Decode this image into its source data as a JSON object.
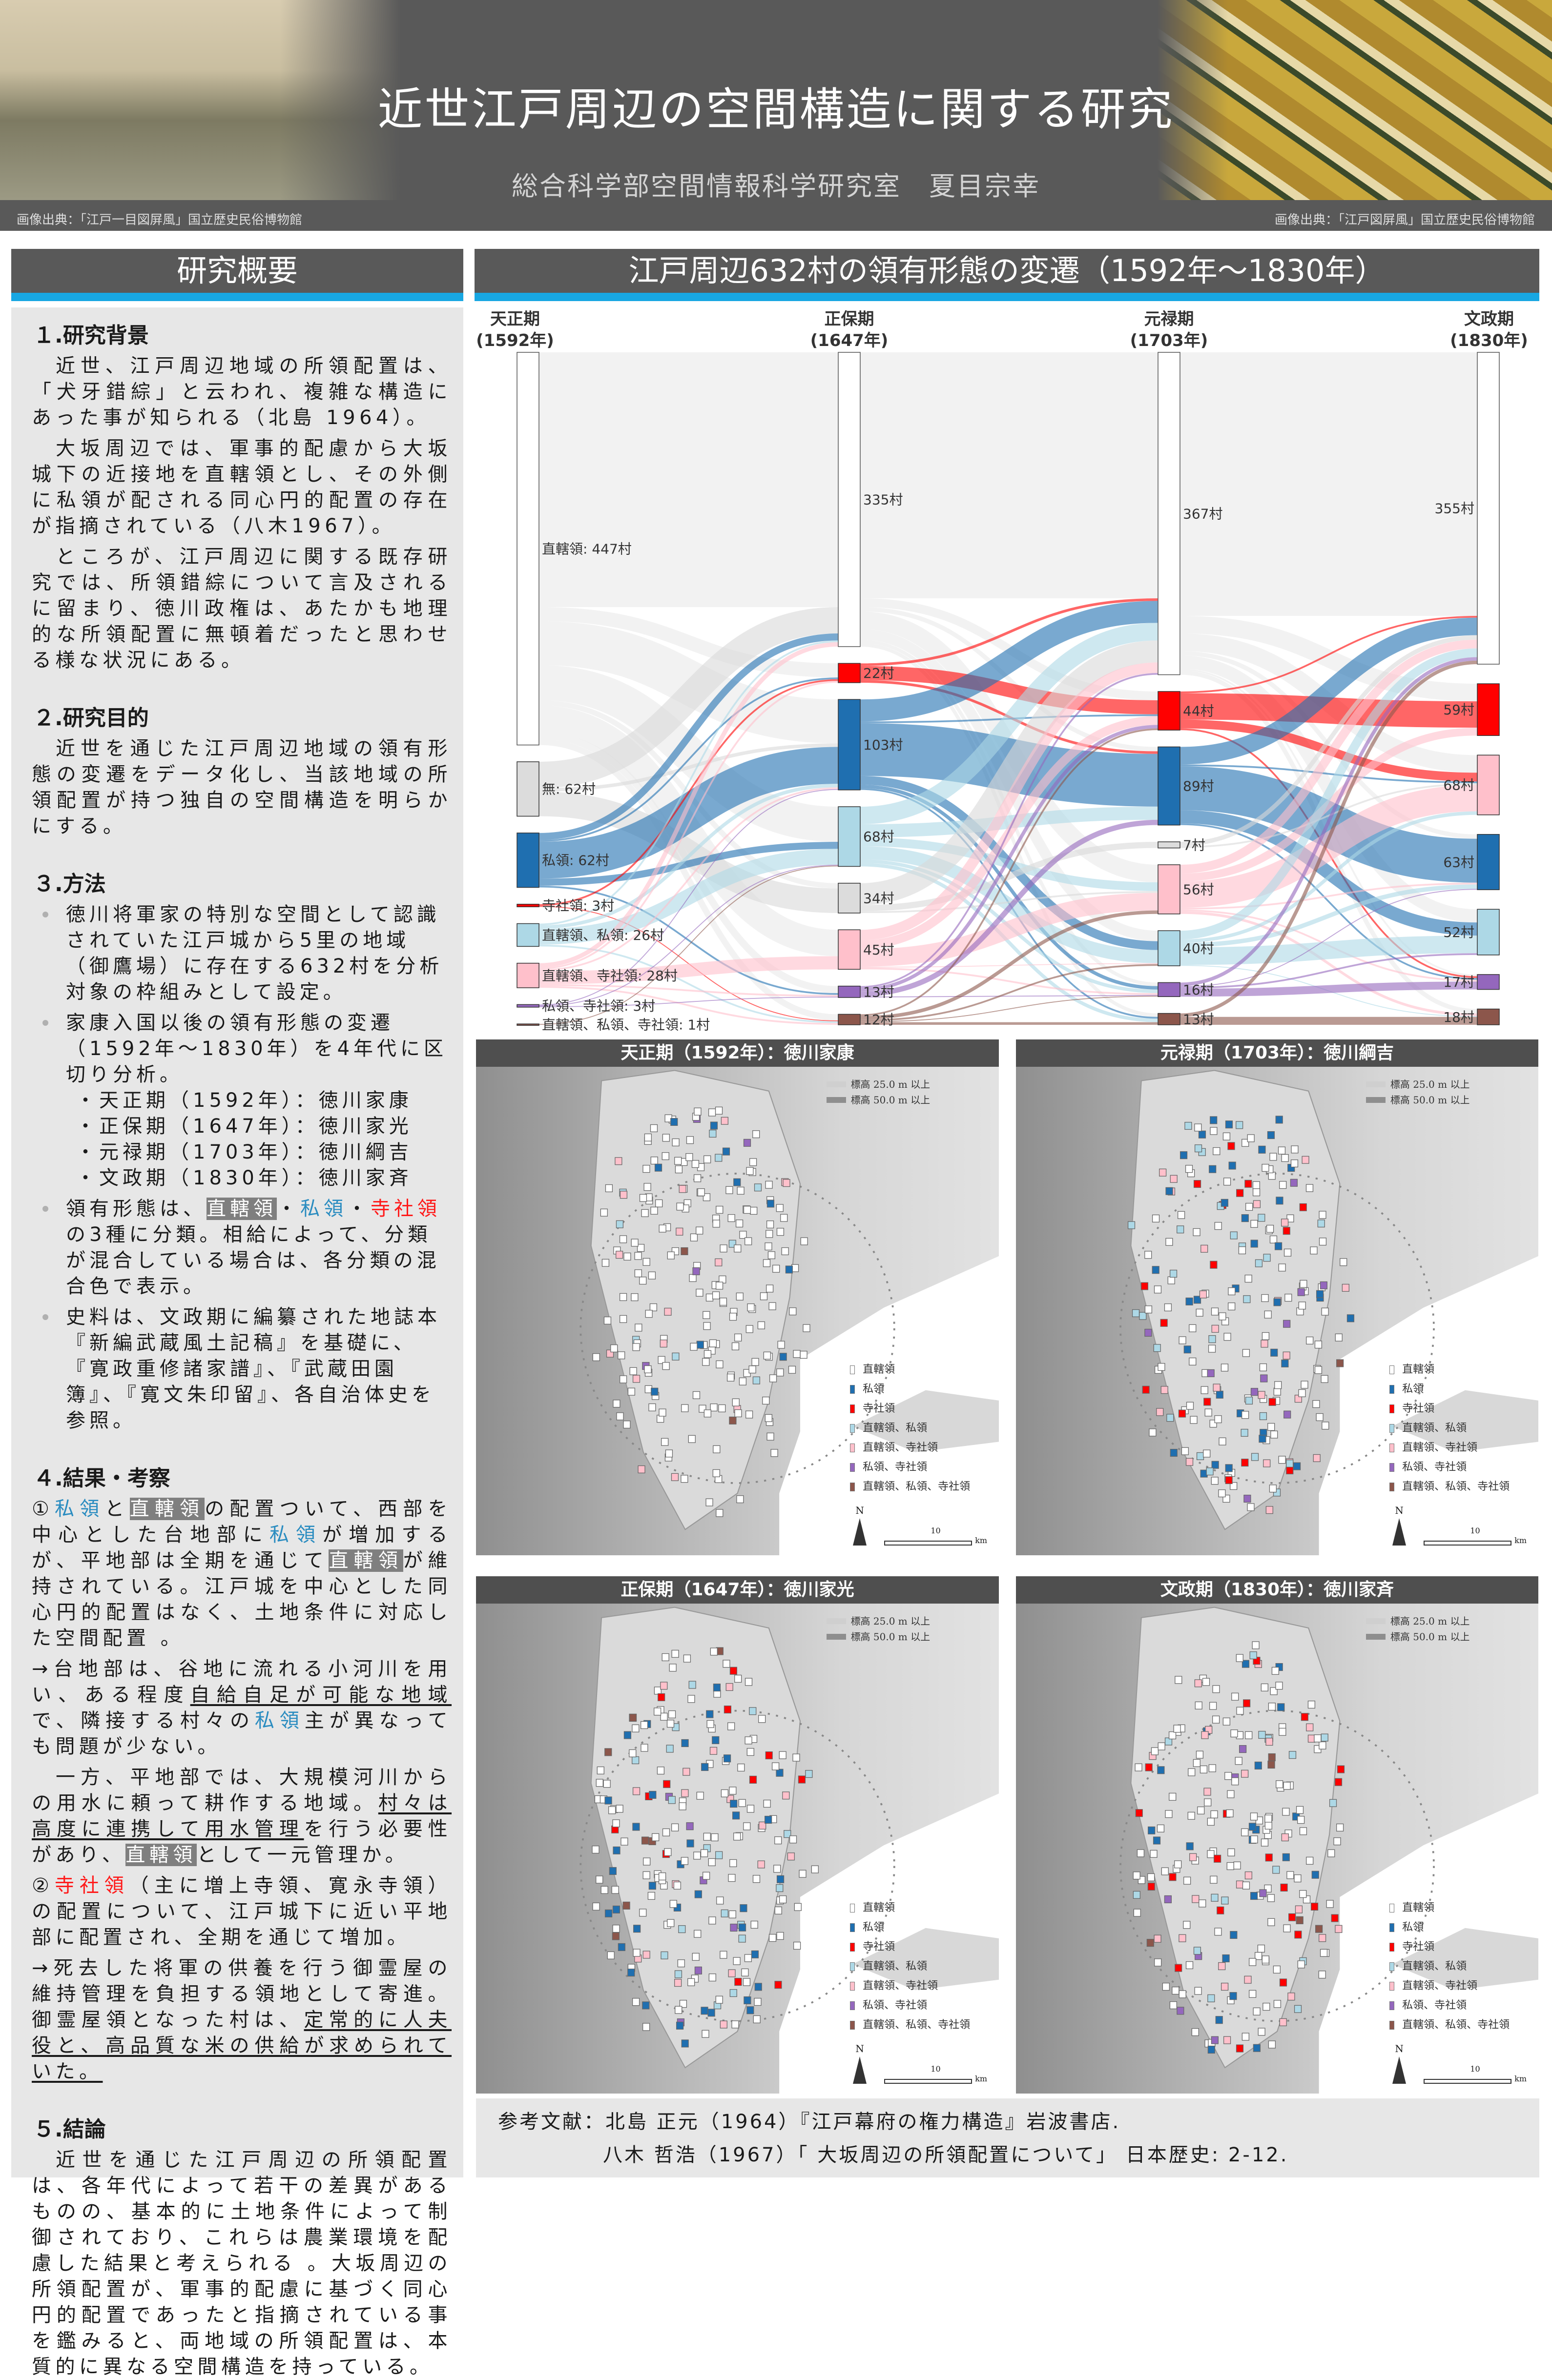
{
  "header": {
    "title": "近世江戸周辺の空間構造に関する研究",
    "subtitle": "総合科学部空間情報科学研究室　夏目宗幸",
    "credit_left": "画像出典：「江戸一目図屏風」国立歴史民俗博物館",
    "credit_right": "画像出典：「江戸図屏風」国立歴史民俗博物館"
  },
  "left_panel": {
    "heading": "研究概要",
    "s1": {
      "title": "１.研究背景",
      "paras": [
        "近世、江戸周辺地域の所領配置は、「犬牙錯綜」と云われ、複雑な構造にあった事が知られる（北島 1964）。",
        "大坂周辺では、軍事的配慮から大坂城下の近接地を直轄領とし、その外側に私領が配される同心円的配置の存在が指摘されている（八木1967）。",
        "ところが、江戸周辺に関する既存研究では、所領錯綜について言及されるに留まり、徳川政権は、あたかも地理的な所領配置に無頓着だったと思わせる様な状況にある。"
      ]
    },
    "s2": {
      "title": "２.研究目的",
      "paras": [
        "近世を通じた江戸周辺地域の領有形態の変遷をデータ化し、当該地域の所領配置が持つ独自の空間構造を明らかにする。"
      ]
    },
    "s3": {
      "title": "３.方法",
      "b1": "徳川将軍家の特別な空間として認識されていた江戸城から5里の地域（御鷹場）に存在する632村を分析対象の枠組みとして設定。",
      "b2": "家康入国以後の領有形態の変遷（1592年～1830年）を4年代に区切り分析。",
      "periods": [
        "・天正期（1592年）：徳川家康",
        "・正保期（1647年）：徳川家光",
        "・元禄期（1703年）：徳川綱吉",
        "・文政期（1830年）：徳川家斉"
      ],
      "b3": [
        {
          "t": "領有形態は、",
          "s": ""
        },
        {
          "t": "直轄領",
          "s": "hl"
        },
        {
          "t": "・",
          "s": ""
        },
        {
          "t": "私領",
          "s": "pv"
        },
        {
          "t": "・",
          "s": ""
        },
        {
          "t": "寺社領",
          "s": "ts"
        },
        {
          "t": "の3種に分類。相給によって、分類が混合している場合は、各分類の混合色で表示。",
          "s": ""
        }
      ],
      "b4": "史料は、文政期に編纂された地誌本『新編武蔵風土記稿』を基礎に、『寛政重修諸家譜』、『武蔵田園簿』、『寛文朱印留』、各自治体史を参照。"
    },
    "s4": {
      "title": "４.結果・考察",
      "p1": [
        {
          "t": "①",
          "s": ""
        },
        {
          "t": "私領",
          "s": "pv"
        },
        {
          "t": "と",
          "s": ""
        },
        {
          "t": "直轄領",
          "s": "hl"
        },
        {
          "t": "の配置ついて、西部を中心とした台地部に",
          "s": ""
        },
        {
          "t": "私領",
          "s": "pv"
        },
        {
          "t": "が増加するが、平地部は全期を通じて",
          "s": ""
        },
        {
          "t": "直轄領",
          "s": "hl"
        },
        {
          "t": "が維持されている。江戸城を中心とした同心円的配置はなく、土地条件に対応した空間配置 。",
          "s": ""
        }
      ],
      "p2": [
        {
          "t": "→台地部は、谷地に流れる小河川を用い、ある程度",
          "s": ""
        },
        {
          "t": "自給自足が可能な地域",
          "s": "u"
        },
        {
          "t": "で、隣接する村々の",
          "s": ""
        },
        {
          "t": "私領",
          "s": "pv"
        },
        {
          "t": "主が異なっても問題が少ない。",
          "s": ""
        }
      ],
      "p3": [
        {
          "t": "一方、平地部では、大規模河川からの用水に頼って耕作する地域。",
          "s": ""
        },
        {
          "t": "村々は高度に連携して用水管理",
          "s": "u"
        },
        {
          "t": "を行う必要性があり、",
          "s": ""
        },
        {
          "t": "直轄領",
          "s": "hl"
        },
        {
          "t": "として一元管理か。",
          "s": ""
        }
      ],
      "p4": [
        {
          "t": "②",
          "s": ""
        },
        {
          "t": "寺社領",
          "s": "ts"
        },
        {
          "t": "（主に増上寺領、寛永寺領）の配置について、江戸城下に近い平地部に配置され、全期を通じて増加。",
          "s": ""
        }
      ],
      "p5": [
        {
          "t": "→死去した将軍の供養を行う御霊屋の維持管理を負担する領地として寄進。御霊屋領となった村は、",
          "s": ""
        },
        {
          "t": "定常的に人夫役と、高品質な米の供給が求められていた。",
          "s": "u"
        }
      ]
    },
    "s5": {
      "title": "５.結論",
      "paras": [
        "近世を通じた江戸周辺の所領配置は、各年代によって若干の差異があるものの、基本的に土地条件によって制御されており、これらは農業環境を配慮した結果と考えられる 。大坂周辺の所領配置が、軍事的配慮に基づく同心円的配置であったと指摘されている事を鑑みると、両地域の所領配置は、本質的に異なる空間構造を持っている。"
      ]
    }
  },
  "right_panel": {
    "heading": "江戸周辺632村の領有形態の変遷（1592年～1830年）"
  },
  "colors": {
    "直轄領": "#ffffff",
    "無": "#dcdcdc",
    "私領": "#1f6fb0",
    "寺社領": "#ff0000",
    "直轄領、私領": "#add8e6",
    "直轄領、寺社領": "#ffc0cb",
    "私領、寺社領": "#9467bd",
    "直轄領、私領、寺社領": "#8c564b",
    "header_bg": "#595959",
    "accent": "#18a7e2"
  },
  "chart_data": {
    "type": "sankey",
    "unit": "村",
    "columns": [
      {
        "name": "天正期",
        "year": "(1592年)",
        "nodes": [
          {
            "cat": "直轄領",
            "value": 447,
            "label": "直轄領: 447村"
          },
          {
            "cat": "無",
            "value": 62,
            "label": "無: 62村"
          },
          {
            "cat": "私領",
            "value": 62,
            "label": "私領: 62村"
          },
          {
            "cat": "寺社領",
            "value": 3,
            "label": "寺社領: 3村"
          },
          {
            "cat": "直轄領、私領",
            "value": 26,
            "label": "直轄領、私領: 26村"
          },
          {
            "cat": "直轄領、寺社領",
            "value": 28,
            "label": "直轄領、寺社領: 28村"
          },
          {
            "cat": "私領、寺社領",
            "value": 3,
            "label": "私領、寺社領: 3村"
          },
          {
            "cat": "直轄領、私領、寺社領",
            "value": 1,
            "label": "直轄領、私領、寺社領: 1村"
          }
        ]
      },
      {
        "name": "正保期",
        "year": "(1647年)",
        "nodes": [
          {
            "cat": "直轄領",
            "value": 335,
            "label": "335村"
          },
          {
            "cat": "寺社領",
            "value": 22,
            "label": "22村"
          },
          {
            "cat": "私領",
            "value": 103,
            "label": "103村"
          },
          {
            "cat": "直轄領、私領",
            "value": 68,
            "label": "68村"
          },
          {
            "cat": "無",
            "value": 34,
            "label": "34村"
          },
          {
            "cat": "直轄領、寺社領",
            "value": 45,
            "label": "45村"
          },
          {
            "cat": "私領、寺社領",
            "value": 13,
            "label": "13村"
          },
          {
            "cat": "直轄領、私領、寺社領",
            "value": 12,
            "label": "12村"
          }
        ]
      },
      {
        "name": "元禄期",
        "year": "(1703年)",
        "nodes": [
          {
            "cat": "直轄領",
            "value": 367,
            "label": "367村"
          },
          {
            "cat": "寺社領",
            "value": 44,
            "label": "44村"
          },
          {
            "cat": "私領",
            "value": 89,
            "label": "89村"
          },
          {
            "cat": "無",
            "value": 7,
            "label": "7村"
          },
          {
            "cat": "直轄領、寺社領",
            "value": 56,
            "label": "56村"
          },
          {
            "cat": "直轄領、私領",
            "value": 40,
            "label": "40村"
          },
          {
            "cat": "私領、寺社領",
            "value": 16,
            "label": "16村"
          },
          {
            "cat": "直轄領、私領、寺社領",
            "value": 13,
            "label": "13村"
          }
        ]
      },
      {
        "name": "文政期",
        "year": "(1830年)",
        "nodes": [
          {
            "cat": "直轄領",
            "value": 355,
            "label": "355村"
          },
          {
            "cat": "寺社領",
            "value": 59,
            "label": "59村"
          },
          {
            "cat": "直轄領、寺社領",
            "value": 68,
            "label": "68村"
          },
          {
            "cat": "私領",
            "value": 63,
            "label": "63村"
          },
          {
            "cat": "直轄領、私領",
            "value": 52,
            "label": "52村"
          },
          {
            "cat": "私領、寺社領",
            "value": 17,
            "label": "17村"
          },
          {
            "cat": "直轄領、私領、寺社領",
            "value": 18,
            "label": "18村"
          }
        ]
      }
    ],
    "links": [
      [
        [
          0,
          0,
          290
        ],
        [
          0,
          1,
          16
        ],
        [
          0,
          2,
          50
        ],
        [
          0,
          3,
          40
        ],
        [
          0,
          5,
          30
        ],
        [
          0,
          6,
          8
        ],
        [
          0,
          7,
          7
        ],
        [
          0,
          4,
          6
        ],
        [
          1,
          0,
          30
        ],
        [
          1,
          4,
          28
        ],
        [
          1,
          2,
          4
        ],
        [
          2,
          2,
          42
        ],
        [
          2,
          0,
          8
        ],
        [
          2,
          3,
          8
        ],
        [
          2,
          1,
          2
        ],
        [
          2,
          6,
          2
        ],
        [
          3,
          1,
          2
        ],
        [
          3,
          7,
          1
        ],
        [
          4,
          3,
          18
        ],
        [
          4,
          2,
          4
        ],
        [
          4,
          0,
          2
        ],
        [
          4,
          7,
          2
        ],
        [
          5,
          5,
          15
        ],
        [
          5,
          0,
          5
        ],
        [
          5,
          1,
          2
        ],
        [
          5,
          6,
          2
        ],
        [
          5,
          7,
          2
        ],
        [
          5,
          2,
          2
        ],
        [
          6,
          2,
          1
        ],
        [
          6,
          6,
          1
        ],
        [
          6,
          3,
          1
        ],
        [
          7,
          3,
          1
        ]
      ],
      [
        [
          0,
          0,
          280
        ],
        [
          0,
          1,
          10
        ],
        [
          0,
          2,
          5
        ],
        [
          0,
          4,
          20
        ],
        [
          0,
          5,
          12
        ],
        [
          0,
          6,
          4
        ],
        [
          0,
          7,
          4
        ],
        [
          1,
          1,
          16
        ],
        [
          1,
          0,
          3
        ],
        [
          1,
          2,
          3
        ],
        [
          2,
          0,
          25
        ],
        [
          2,
          2,
          60
        ],
        [
          2,
          5,
          10
        ],
        [
          2,
          6,
          4
        ],
        [
          2,
          1,
          2
        ],
        [
          2,
          7,
          2
        ],
        [
          3,
          0,
          20
        ],
        [
          3,
          2,
          15
        ],
        [
          3,
          5,
          15
        ],
        [
          3,
          4,
          10
        ],
        [
          3,
          6,
          4
        ],
        [
          3,
          7,
          4
        ],
        [
          4,
          0,
          25
        ],
        [
          4,
          3,
          7
        ],
        [
          4,
          4,
          2
        ],
        [
          5,
          0,
          12
        ],
        [
          5,
          4,
          20
        ],
        [
          5,
          1,
          10
        ],
        [
          5,
          6,
          2
        ],
        [
          5,
          5,
          1
        ],
        [
          6,
          2,
          6
        ],
        [
          6,
          1,
          4
        ],
        [
          6,
          0,
          2
        ],
        [
          6,
          6,
          1
        ],
        [
          7,
          4,
          4
        ],
        [
          7,
          5,
          2
        ],
        [
          7,
          6,
          1
        ],
        [
          7,
          7,
          3
        ],
        [
          7,
          1,
          2
        ]
      ],
      [
        [
          0,
          0,
          300
        ],
        [
          0,
          1,
          20
        ],
        [
          0,
          2,
          20
        ],
        [
          0,
          3,
          5
        ],
        [
          0,
          4,
          15
        ],
        [
          0,
          5,
          2
        ],
        [
          0,
          6,
          5
        ],
        [
          1,
          1,
          30
        ],
        [
          1,
          2,
          10
        ],
        [
          1,
          0,
          2
        ],
        [
          1,
          5,
          2
        ],
        [
          2,
          3,
          50
        ],
        [
          2,
          0,
          20
        ],
        [
          2,
          4,
          15
        ],
        [
          2,
          5,
          2
        ],
        [
          2,
          2,
          2
        ],
        [
          3,
          0,
          5
        ],
        [
          3,
          2,
          2
        ],
        [
          4,
          2,
          30
        ],
        [
          4,
          0,
          10
        ],
        [
          4,
          1,
          9
        ],
        [
          4,
          6,
          3
        ],
        [
          4,
          3,
          2
        ],
        [
          4,
          5,
          2
        ],
        [
          5,
          4,
          20
        ],
        [
          5,
          0,
          10
        ],
        [
          5,
          3,
          5
        ],
        [
          5,
          2,
          4
        ],
        [
          5,
          6,
          1
        ],
        [
          6,
          5,
          9
        ],
        [
          6,
          0,
          4
        ],
        [
          6,
          3,
          1
        ],
        [
          6,
          4,
          2
        ],
        [
          7,
          6,
          9
        ],
        [
          7,
          0,
          4
        ]
      ]
    ]
  },
  "maps": {
    "panels": [
      {
        "title": "天正期（1592年）：徳川家康"
      },
      {
        "title": "元禄期（1703年）：徳川綱吉"
      },
      {
        "title": "正保期（1647年）：徳川家光"
      },
      {
        "title": "文政期（1830年）：徳川家斉"
      }
    ],
    "elevation_legend": [
      "標高 25.0 m 以上",
      "標高 50.0 m 以上"
    ],
    "legend": [
      "直轄領",
      "私領",
      "寺社領",
      "直轄領、私領",
      "直轄領、寺社領",
      "私領、寺社領",
      "直轄領、私領、寺社領"
    ],
    "north": "N",
    "scale_value": "10",
    "scale_unit": "km"
  },
  "references": {
    "line1": "参考文献：北島 正元（1964）『江戸幕府の権力構造』岩波書店.",
    "line2": "八木 哲浩（1967）「 大坂周辺の所領配置について」 日本歴史: 2-12."
  }
}
